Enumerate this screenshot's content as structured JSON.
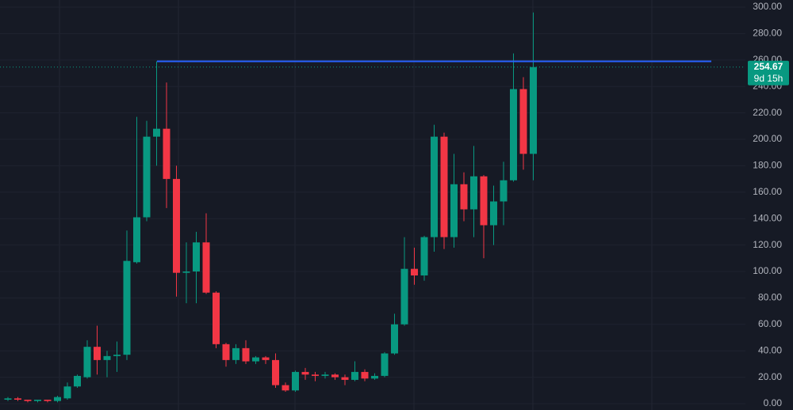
{
  "chart_data": {
    "type": "candlestick",
    "categories": [
      null,
      null,
      null,
      null,
      null,
      null,
      null,
      null,
      null,
      null,
      null,
      null,
      null,
      null,
      null,
      null,
      null,
      null,
      null,
      null,
      null,
      null,
      null,
      null,
      null,
      null,
      null,
      null,
      null,
      null,
      null,
      null,
      null,
      null,
      null,
      null,
      null,
      null,
      null,
      null,
      null,
      null,
      null,
      null,
      null,
      null,
      null,
      null,
      null,
      null,
      null,
      null,
      null,
      null
    ],
    "open": [
      3,
      4,
      3,
      2,
      3,
      2,
      4,
      13,
      20,
      43,
      33,
      36,
      37,
      107,
      141,
      202,
      208,
      170,
      99,
      100,
      122,
      84,
      45,
      33,
      42,
      32,
      35,
      33,
      14,
      10,
      24,
      22,
      21,
      22,
      20,
      18,
      24,
      19,
      21,
      38,
      60,
      102,
      97,
      126,
      202,
      126,
      166,
      147,
      172,
      135,
      153,
      169,
      238,
      189
    ],
    "high": [
      5,
      5,
      3,
      3,
      3,
      6,
      16,
      22,
      48,
      59,
      40,
      47,
      131,
      217,
      214,
      259,
      243,
      180,
      122,
      130,
      144,
      85,
      46,
      45,
      48,
      36,
      36,
      38,
      16,
      25,
      27,
      24,
      24,
      23,
      22,
      32,
      26,
      23,
      39,
      68,
      126,
      118,
      127,
      211,
      205,
      189,
      175,
      195,
      173,
      165,
      183,
      265,
      247,
      296
    ],
    "low": [
      2,
      2,
      1,
      1,
      1,
      1,
      3,
      12,
      19,
      22,
      20,
      24,
      33,
      106,
      138,
      180,
      148,
      81,
      76,
      76,
      83,
      42,
      28,
      30,
      30,
      30,
      30,
      12,
      9,
      9,
      18,
      17,
      19,
      18,
      14,
      17,
      17,
      18,
      20,
      37,
      59,
      90,
      93,
      115,
      117,
      118,
      138,
      126,
      110,
      120,
      135,
      168,
      177,
      169
    ],
    "close": [
      4,
      3,
      2,
      3,
      2,
      5,
      13,
      21,
      43,
      33,
      36,
      37,
      108,
      141,
      202,
      208,
      170,
      99,
      100,
      122,
      84,
      45,
      33,
      42,
      32,
      35,
      33,
      14,
      10,
      24,
      22,
      21,
      22,
      20,
      18,
      24,
      19,
      21,
      38,
      60,
      102,
      97,
      126,
      202,
      126,
      166,
      147,
      172,
      135,
      153,
      169,
      238,
      189,
      254.67
    ],
    "up_color": "#089981",
    "down_color": "#f23645",
    "ylim": [
      -4.8,
      305.4
    ],
    "yticks": [
      {
        "value": 0,
        "label": "0.00"
      },
      {
        "value": 20,
        "label": "20.00"
      },
      {
        "value": 40,
        "label": "40.00"
      },
      {
        "value": 60,
        "label": "60.00"
      },
      {
        "value": 80,
        "label": "80.00"
      },
      {
        "value": 100,
        "label": "100.00"
      },
      {
        "value": 120,
        "label": "120.00"
      },
      {
        "value": 140,
        "label": "140.00"
      },
      {
        "value": 160,
        "label": "160.00"
      },
      {
        "value": 180,
        "label": "180.00"
      },
      {
        "value": 200,
        "label": "200.00"
      },
      {
        "value": 220,
        "label": "220.00"
      },
      {
        "value": 240,
        "label": "240.00"
      },
      {
        "value": 260,
        "label": "260.00"
      },
      {
        "value": 280,
        "label": "280.00"
      },
      {
        "value": 300,
        "label": "300.00"
      }
    ],
    "grid": true,
    "level_line": {
      "value": 259,
      "color": "#2962ff"
    },
    "last_price": 254.67,
    "countdown": "9d 15h"
  }
}
